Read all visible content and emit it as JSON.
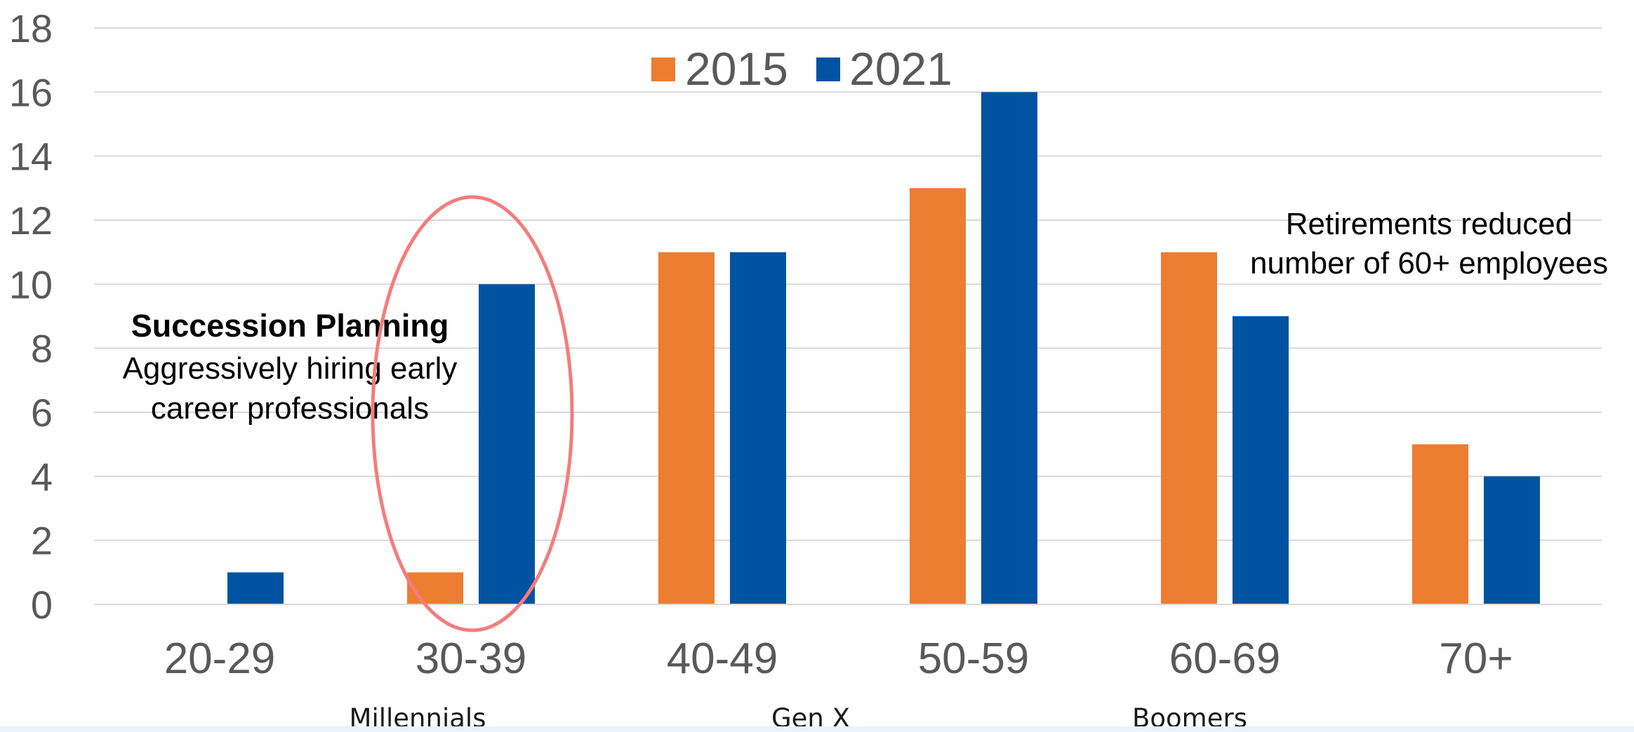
{
  "chart_data": {
    "type": "bar",
    "categories": [
      "20-29",
      "30-39",
      "40-49",
      "50-59",
      "60-69",
      "70+"
    ],
    "series": [
      {
        "name": "2015",
        "values": [
          0,
          1,
          11,
          13,
          11,
          5
        ],
        "color": "#ED7D31"
      },
      {
        "name": "2021",
        "values": [
          1,
          10,
          11,
          16,
          9,
          4
        ],
        "color": "#0053A0"
      }
    ],
    "ylim": [
      0,
      18
    ],
    "yticks": [
      "0",
      "2",
      "4",
      "6",
      "8",
      "10",
      "12",
      "14",
      "16",
      "18"
    ],
    "grid": true,
    "legend_position": "top-center",
    "generations": [
      "Millennials",
      "Gen X",
      "Boomers"
    ],
    "annotations": {
      "succession_title": "Succession Planning",
      "succession_line1": "Aggressively hiring early",
      "succession_line2": "career professionals",
      "retirement_line1": "Retirements reduced",
      "retirement_line2": "number of 60+ employees"
    },
    "highlight_color": "#F47C7C"
  }
}
